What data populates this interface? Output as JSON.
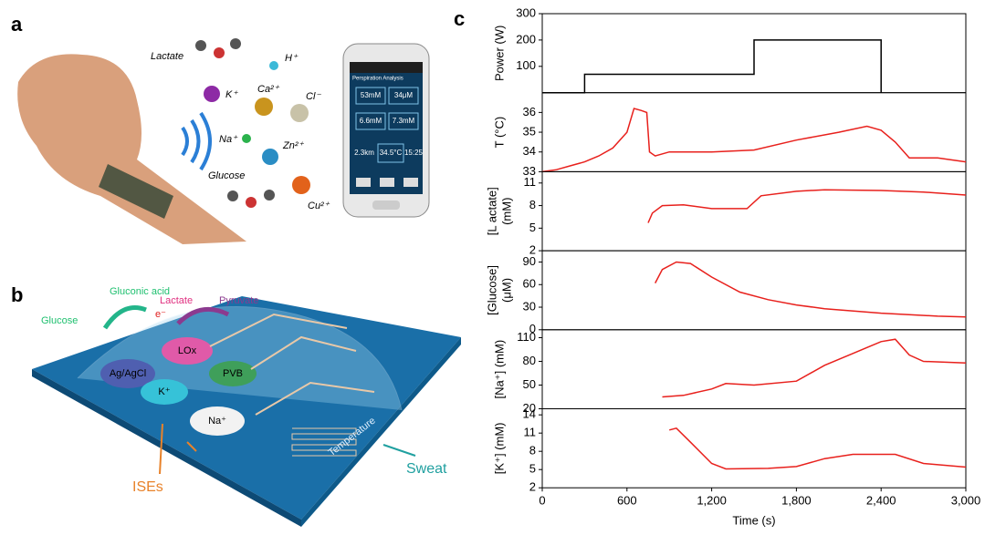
{
  "figure": {
    "panel_labels": [
      "a",
      "b",
      "c"
    ],
    "panel_a": {
      "molecules": [
        "Lactate",
        "H⁺",
        "K⁺",
        "Ca²⁺",
        "Cl⁻",
        "Na⁺",
        "Zn²⁺",
        "Glucose",
        "Cu²⁺"
      ],
      "phone": {
        "title": "Perspiration Analysis",
        "readings": [
          "53mM",
          "34μM",
          "6.6mM",
          "7.3mM",
          "2.3km",
          "34.5°C",
          "15:25"
        ]
      }
    },
    "panel_b": {
      "labels": [
        "Glucose",
        "Gluconic acid",
        "Lactate",
        "Pyruvate",
        "e⁻",
        "LOx",
        "Ag/AgCl",
        "K⁺",
        "PVB",
        "Na⁺",
        "ISEs",
        "Temperature",
        "Sweat"
      ]
    }
  },
  "chart_data": [
    {
      "type": "line",
      "ylabel": [
        "Power (W)"
      ],
      "color": "#000000",
      "xlim": [
        0,
        3000
      ],
      "ylim": [
        0,
        300
      ],
      "yticks": [
        100,
        200,
        300
      ],
      "x": [
        0,
        300,
        300,
        1500,
        1500,
        2400,
        2400
      ],
      "values": [
        0,
        0,
        70,
        70,
        200,
        200,
        0
      ]
    },
    {
      "type": "line",
      "ylabel": [
        "T (°C)"
      ],
      "color": "#e8201c",
      "xlim": [
        0,
        3000
      ],
      "ylim": [
        33,
        37
      ],
      "yticks": [
        33,
        34,
        35,
        36
      ],
      "x": [
        0,
        100,
        200,
        300,
        400,
        500,
        600,
        650,
        700,
        740,
        760,
        800,
        900,
        1200,
        1500,
        1800,
        2100,
        2300,
        2400,
        2500,
        2600,
        2800,
        3000
      ],
      "values": [
        33.0,
        33.1,
        33.3,
        33.5,
        33.8,
        34.2,
        35.0,
        36.2,
        36.1,
        36.0,
        34.0,
        33.8,
        34.0,
        34.0,
        34.1,
        34.6,
        35.0,
        35.3,
        35.1,
        34.5,
        33.7,
        33.7,
        33.5
      ]
    },
    {
      "type": "line",
      "ylabel": [
        "[L actate]",
        "(mM)"
      ],
      "color": "#e8201c",
      "xlim": [
        0,
        3000
      ],
      "ylim": [
        2,
        12.5
      ],
      "yticks": [
        2,
        5,
        8,
        11
      ],
      "x": [
        750,
        780,
        850,
        1000,
        1200,
        1450,
        1550,
        1800,
        2000,
        2400,
        2700,
        3000
      ],
      "values": [
        5.7,
        7.0,
        8.0,
        8.1,
        7.6,
        7.6,
        9.3,
        9.9,
        10.1,
        10.0,
        9.8,
        9.4
      ]
    },
    {
      "type": "line",
      "ylabel": [
        "[Glucose]",
        "(μM)"
      ],
      "color": "#e8201c",
      "xlim": [
        0,
        3000
      ],
      "ylim": [
        0,
        105
      ],
      "yticks": [
        0,
        30,
        60,
        90
      ],
      "x": [
        800,
        850,
        950,
        1050,
        1200,
        1400,
        1600,
        1800,
        2000,
        2400,
        2800,
        3000
      ],
      "values": [
        62,
        80,
        90,
        88,
        70,
        50,
        40,
        33,
        28,
        22,
        18,
        17
      ]
    },
    {
      "type": "line",
      "ylabel": [
        "[Na⁺] (mM)"
      ],
      "color": "#e8201c",
      "xlim": [
        0,
        3000
      ],
      "ylim": [
        20,
        120
      ],
      "yticks": [
        20,
        50,
        80,
        110
      ],
      "x": [
        850,
        1000,
        1200,
        1300,
        1500,
        1800,
        2000,
        2200,
        2400,
        2500,
        2600,
        2700,
        3000
      ],
      "values": [
        35,
        37,
        45,
        52,
        50,
        55,
        75,
        90,
        105,
        108,
        88,
        80,
        78
      ]
    },
    {
      "type": "line",
      "ylabel": [
        "[K⁺] (mM)"
      ],
      "color": "#e8201c",
      "xlim": [
        0,
        3000
      ],
      "ylim": [
        2,
        15
      ],
      "yticks": [
        2,
        5,
        8,
        11,
        14
      ],
      "xticks": [
        0,
        {
          "value": 600,
          "label": "600"
        },
        {
          "value": 1200,
          "label": "1,200"
        },
        {
          "value": 1800,
          "label": "1,800"
        },
        {
          "value": 2400,
          "label": "2,400"
        },
        {
          "value": 3000,
          "label": "3,000"
        }
      ],
      "xlabel": "Time (s)",
      "x": [
        900,
        950,
        1050,
        1200,
        1300,
        1600,
        1800,
        2000,
        2200,
        2500,
        2700,
        3000
      ],
      "values": [
        11.5,
        11.8,
        9.5,
        6.0,
        5.1,
        5.2,
        5.5,
        6.8,
        7.5,
        7.5,
        6.0,
        5.4
      ]
    }
  ]
}
